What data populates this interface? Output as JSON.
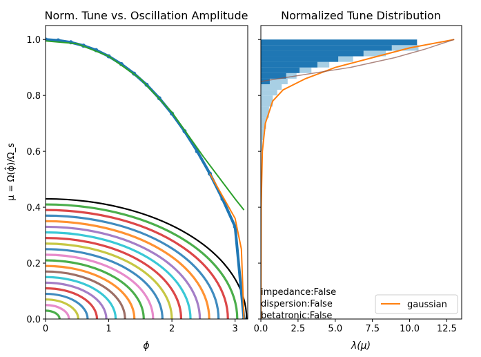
{
  "chart_data": [
    {
      "type": "scatter",
      "title": "Norm. Tune vs. Oscillation Amplitude",
      "xlabel": "ϕ",
      "ylabel": "μ = Ω(ϕ̂)/Ω_s",
      "xlim": [
        0,
        3.2
      ],
      "ylim": [
        0,
        1.05
      ],
      "xticks": [
        "0",
        "1",
        "2",
        "3"
      ],
      "yticks": [
        "0.0",
        "0.2",
        "0.4",
        "0.6",
        "0.8",
        "1.0"
      ],
      "grid": false,
      "series": [
        {
          "color": "#1f77b4",
          "points": [
            [
              0.0,
              1.0
            ],
            [
              0.2,
              0.997
            ],
            [
              0.4,
              0.99
            ],
            [
              0.6,
              0.978
            ],
            [
              0.8,
              0.962
            ],
            [
              1.0,
              0.94
            ],
            [
              1.2,
              0.912
            ],
            [
              1.4,
              0.878
            ],
            [
              1.6,
              0.838
            ],
            [
              1.8,
              0.79
            ],
            [
              2.0,
              0.735
            ],
            [
              2.2,
              0.672
            ],
            [
              2.4,
              0.6
            ],
            [
              2.6,
              0.52
            ],
            [
              2.8,
              0.43
            ],
            [
              3.0,
              0.33
            ],
            [
              3.14,
              0.0
            ]
          ]
        },
        {
          "color": "#2ca02c",
          "points": [
            [
              0.0,
              0.995
            ],
            [
              0.5,
              0.985
            ],
            [
              1.0,
              0.94
            ],
            [
              1.5,
              0.86
            ],
            [
              2.0,
              0.74
            ],
            [
              2.5,
              0.58
            ],
            [
              3.0,
              0.43
            ],
            [
              3.14,
              0.39
            ]
          ]
        },
        {
          "color": "#ff7f0e",
          "points": [
            [
              2.6,
              0.52
            ],
            [
              2.8,
              0.44
            ],
            [
              3.0,
              0.36
            ],
            [
              3.1,
              0.25
            ],
            [
              3.14,
              0.0
            ]
          ]
        }
      ],
      "rings": {
        "radii": [
          0.43,
          0.41,
          0.39,
          0.37,
          0.35,
          0.33,
          0.31,
          0.29,
          0.27,
          0.25,
          0.23,
          0.21,
          0.19,
          0.17,
          0.15,
          0.13,
          0.11,
          0.09,
          0.07,
          0.05,
          0.03
        ],
        "xscale": 7.4,
        "colors": [
          "#000000",
          "#2ca02c",
          "#d62728",
          "#1f77b4",
          "#ff7f0e",
          "#9467bd",
          "#17becf",
          "#d62728",
          "#bcbd22",
          "#1f77b4",
          "#e377c2",
          "#2ca02c",
          "#ff7f0e",
          "#8c564b",
          "#17becf",
          "#9467bd",
          "#d62728",
          "#1f77b4",
          "#bcbd22",
          "#e377c2",
          "#2ca02c"
        ]
      }
    },
    {
      "type": "bar",
      "title": "Normalized Tune Distribution",
      "xlabel": "λ(μ)",
      "xlim": [
        0,
        13.5
      ],
      "ylim": [
        0,
        1.05
      ],
      "xticks": [
        "0.0",
        "2.5",
        "5.0",
        "7.5",
        "10.0",
        "12.5"
      ],
      "orientation": "horizontal",
      "hist_dark": {
        "color": "#1f77b4",
        "bins": [
          [
            0.98,
            1.0,
            10.5
          ],
          [
            0.96,
            0.98,
            8.8
          ],
          [
            0.94,
            0.96,
            6.9
          ],
          [
            0.92,
            0.94,
            5.2
          ],
          [
            0.9,
            0.92,
            3.8
          ],
          [
            0.88,
            0.9,
            2.6
          ],
          [
            0.86,
            0.88,
            1.7
          ],
          [
            0.84,
            0.86,
            0.6
          ]
        ]
      },
      "hist_light": {
        "color": "#9ecae1",
        "bins": [
          [
            0.96,
            0.98,
            10.6
          ],
          [
            0.94,
            0.96,
            8.4
          ],
          [
            0.92,
            0.94,
            6.2
          ],
          [
            0.9,
            0.92,
            4.6
          ],
          [
            0.88,
            0.9,
            3.4
          ],
          [
            0.86,
            0.88,
            2.4
          ],
          [
            0.84,
            0.86,
            1.8
          ],
          [
            0.82,
            0.84,
            1.4
          ],
          [
            0.8,
            0.82,
            1.1
          ],
          [
            0.76,
            0.8,
            0.8
          ],
          [
            0.72,
            0.76,
            0.55
          ],
          [
            0.68,
            0.72,
            0.35
          ],
          [
            0.64,
            0.68,
            0.2
          ],
          [
            0.6,
            0.64,
            0.1
          ]
        ]
      },
      "series": [
        {
          "name": "gaussian",
          "color": "#ff7f0e",
          "points": [
            [
              0.0,
              0.0
            ],
            [
              0.02,
              0.4
            ],
            [
              0.1,
              0.6
            ],
            [
              0.3,
              0.7
            ],
            [
              0.8,
              0.78
            ],
            [
              1.5,
              0.82
            ],
            [
              3.0,
              0.86
            ],
            [
              5.0,
              0.9
            ],
            [
              7.5,
              0.935
            ],
            [
              10.0,
              0.97
            ],
            [
              13.0,
              1.0
            ]
          ]
        },
        {
          "color": "#8c564b",
          "points": [
            [
              0.0,
              0.85
            ],
            [
              3.0,
              0.875
            ],
            [
              6.0,
              0.9
            ],
            [
              9.0,
              0.935
            ],
            [
              11.0,
              0.965
            ],
            [
              13.0,
              1.0
            ]
          ]
        }
      ],
      "legend": {
        "entries": [
          "gaussian"
        ],
        "placement": "lower-right"
      },
      "annotations": [
        "impedance:False",
        "dispersion:False",
        "betatronic:False"
      ]
    }
  ]
}
